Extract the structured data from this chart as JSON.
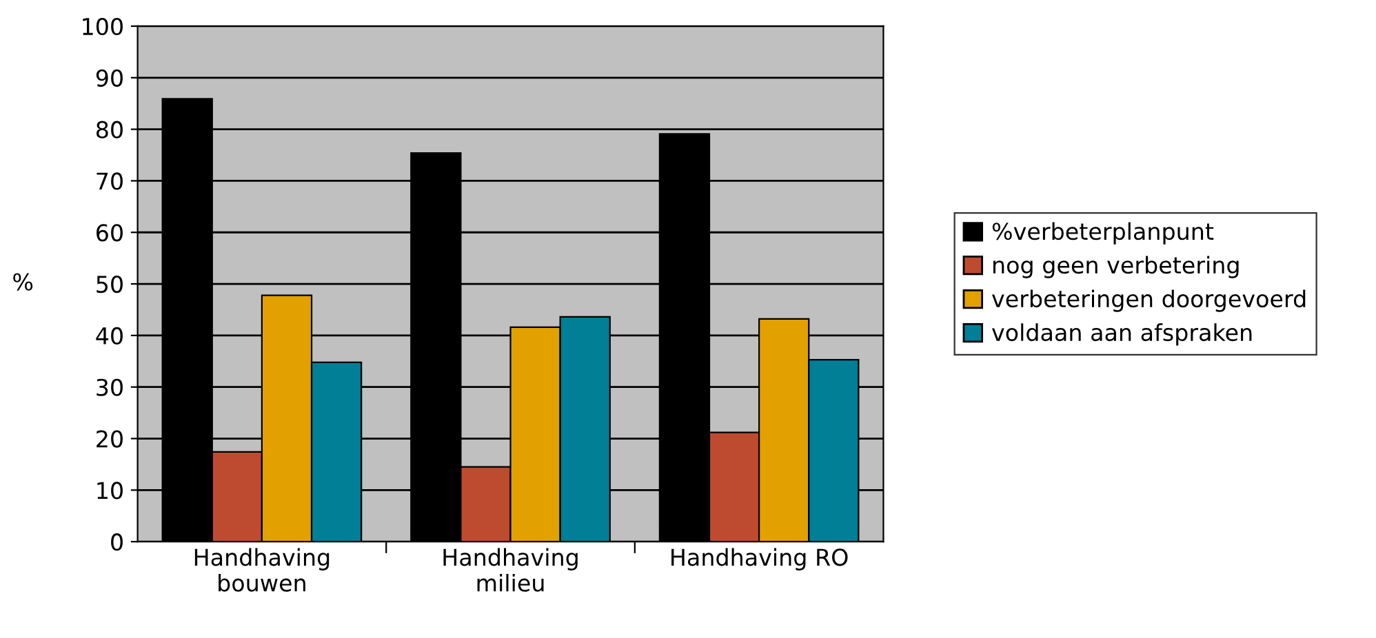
{
  "chart_data": {
    "type": "bar",
    "categories": [
      "Handhaving\nbouwen",
      "Handhaving\nmilieu",
      "Handhaving RO"
    ],
    "series": [
      {
        "name": "%verbeterplanpunt",
        "color": "#000000",
        "values": [
          85.9,
          75.4,
          79.1
        ]
      },
      {
        "name": "nog geen verbetering",
        "color": "#be4b2f",
        "values": [
          17.4,
          14.5,
          21.2
        ]
      },
      {
        "name": "verbeteringen doorgevoerd",
        "color": "#e3a100",
        "values": [
          47.8,
          41.6,
          43.2
        ]
      },
      {
        "name": "voldaan aan afspraken",
        "color": "#007f96",
        "values": [
          34.8,
          43.6,
          35.3
        ]
      }
    ],
    "ylabel": "%",
    "ylim": [
      0,
      100
    ],
    "yticks": [
      0,
      10,
      20,
      30,
      40,
      50,
      60,
      70,
      80,
      90,
      100
    ],
    "grid": "y",
    "legend": "right"
  }
}
